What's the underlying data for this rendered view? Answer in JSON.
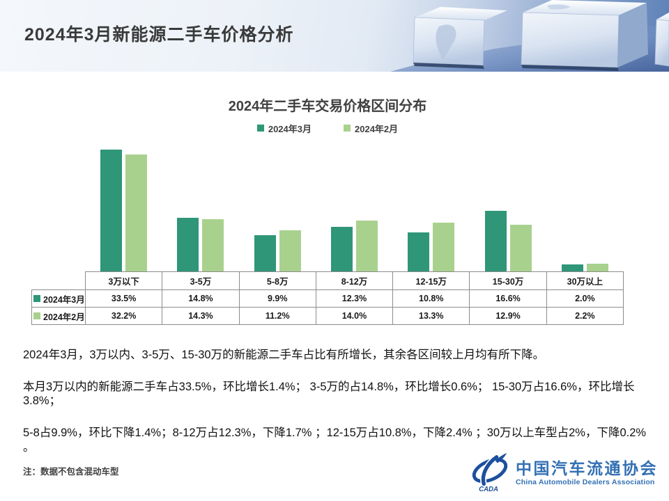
{
  "slide": {
    "title": "2024年3月新能源二手车价格分析"
  },
  "chart": {
    "title": "2024年二手车交易价格区间分布"
  },
  "chart_data": {
    "type": "bar",
    "title": "2024年二手车交易价格区间分布",
    "categories": [
      "3万以下",
      "3-5万",
      "5-8万",
      "8-12万",
      "12-15万",
      "15-30万",
      "30万以上"
    ],
    "series": [
      {
        "name": "2024年3月",
        "color": "#2f9678",
        "values": [
          33.5,
          14.8,
          9.9,
          12.3,
          10.8,
          16.6,
          2.0
        ]
      },
      {
        "name": "2024年2月",
        "color": "#a9d18e",
        "values": [
          32.2,
          14.3,
          11.2,
          14.0,
          13.3,
          12.9,
          2.2
        ]
      }
    ],
    "xlabel": "",
    "ylabel": "",
    "ylim": [
      0,
      35
    ],
    "grid": false,
    "legend_position": "top",
    "value_format": "percent",
    "table_shown": true
  },
  "analysis": {
    "p1": "2024年3月，3万以内、3-5万、15-30万的新能源二手车占比有所增长，其余各区间较上月均有所下降。",
    "p2": "本月3万以内的新能源二手车占33.5%，环比增长1.4%；  3-5万的占14.8%，环比增长0.6%；  15-30万占16.6%，环比增长3.8%；",
    "p3": "5-8占9.9%，环比下降1.4%；8-12万占12.3%，下降1.7% ；12-15万占10.8%，下降2.4% ；30万以上车型占2%，下降0.2% 。"
  },
  "note": "注：数据不包含混动车型",
  "logo": {
    "acronym": "CADA",
    "name_cn": "中国汽车流通协会",
    "name_en": "China Automobile Dealers Association",
    "blue": "#1d4f9e"
  }
}
